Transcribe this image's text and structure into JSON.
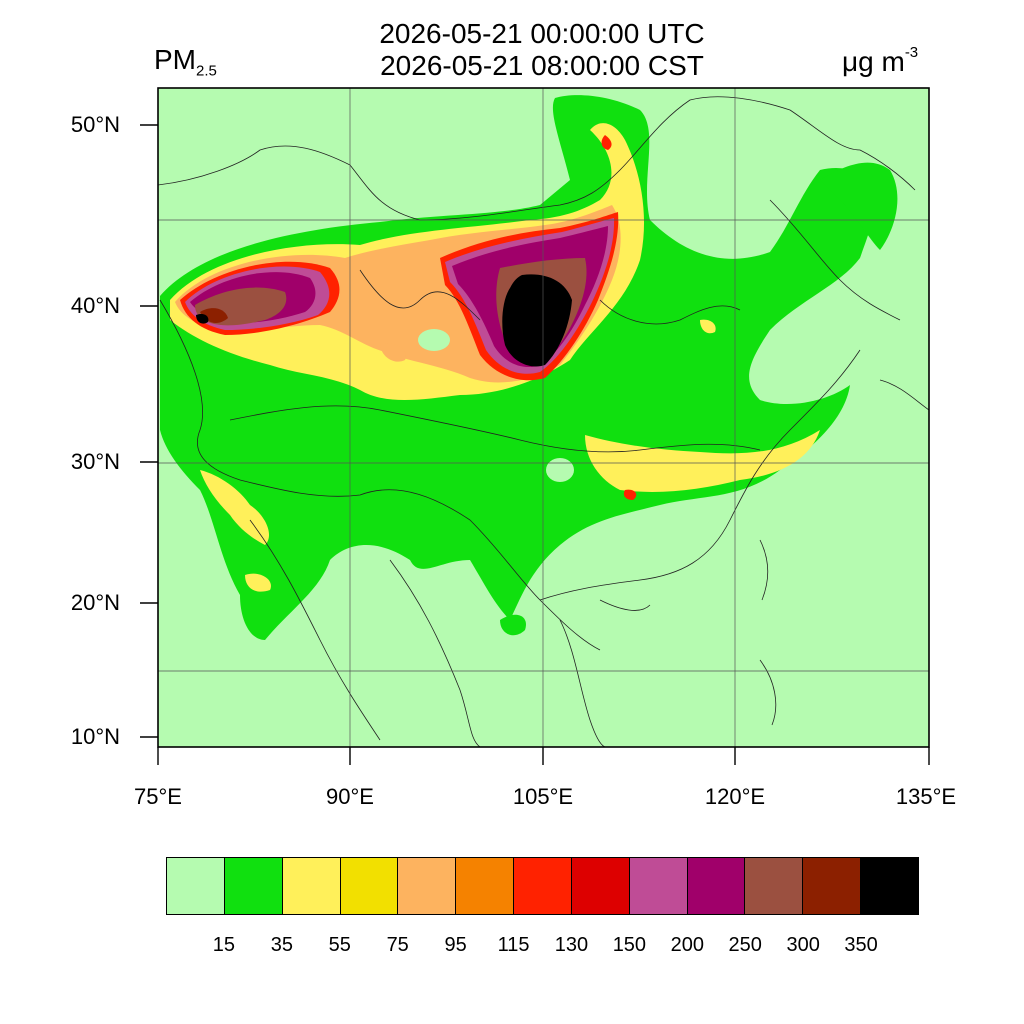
{
  "header": {
    "title_utc": "2026-05-21 00:00:00 UTC",
    "title_local": "2026-05-21 08:00:00 CST",
    "variable_base": "PM",
    "variable_sub": "2.5",
    "unit_base": "μg m",
    "unit_sup": "-3"
  },
  "axes": {
    "lat_labels": [
      "50°N",
      "40°N",
      "30°N",
      "20°N",
      "10°N"
    ],
    "lon_labels": [
      "75°E",
      "90°E",
      "105°E",
      "120°E",
      "135°E"
    ]
  },
  "colorbar": {
    "colors": [
      "#b5fbb0",
      "#10e00f",
      "#fff05a",
      "#f2e000",
      "#fdb35f",
      "#f58200",
      "#ff2200",
      "#dd0000",
      "#bf4c96",
      "#a0006a",
      "#9b5040",
      "#8c2000",
      "#000000"
    ],
    "labels": [
      "15",
      "35",
      "55",
      "75",
      "95",
      "115",
      "130",
      "150",
      "200",
      "250",
      "300",
      "350"
    ]
  },
  "map_colors": {
    "background": "#b5fbb0",
    "low": "#10e00f",
    "moderate": "#fff05a",
    "orange": "#fdb35f",
    "red": "#ff2200",
    "magenta": "#bf4c96",
    "purple": "#a0006a",
    "brown": "#9b5040",
    "black": "#000000"
  }
}
